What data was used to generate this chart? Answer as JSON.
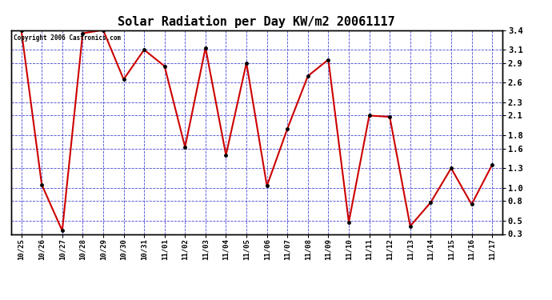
{
  "title": "Solar Radiation per Day KW/m2 20061117",
  "copyright": "Copyright 2006 Castronics.com",
  "labels": [
    "10/25",
    "10/26",
    "10/27",
    "10/28",
    "10/29",
    "10/30",
    "10/31",
    "11/01",
    "11/02",
    "11/03",
    "11/04",
    "11/05",
    "11/06",
    "11/07",
    "11/08",
    "11/09",
    "11/10",
    "11/11",
    "11/12",
    "11/13",
    "11/14",
    "11/15",
    "11/16",
    "11/17"
  ],
  "values": [
    3.4,
    1.05,
    0.35,
    3.35,
    3.4,
    2.65,
    3.1,
    2.85,
    1.62,
    3.13,
    1.5,
    2.9,
    1.03,
    1.9,
    2.7,
    2.95,
    0.48,
    2.1,
    2.08,
    0.42,
    0.78,
    1.3,
    0.75,
    1.35
  ],
  "line_color": "#cc0000",
  "marker_color": "#000000",
  "bg_color": "#ffffff",
  "plot_bg_color": "#ffffff",
  "grid_color": "#3333cc",
  "title_fontsize": 11,
  "ylim": [
    0.3,
    3.4
  ],
  "yticks": [
    0.3,
    0.5,
    0.8,
    1.0,
    1.3,
    1.6,
    1.8,
    2.1,
    2.3,
    2.6,
    2.9,
    3.1,
    3.4
  ],
  "ytick_labels": [
    "0.3",
    "0.5",
    "0.8",
    "1.0",
    "1.3",
    "1.6",
    "1.8",
    "2.1",
    "2.3",
    "2.6",
    "2.9",
    "3.1",
    "3.4"
  ]
}
